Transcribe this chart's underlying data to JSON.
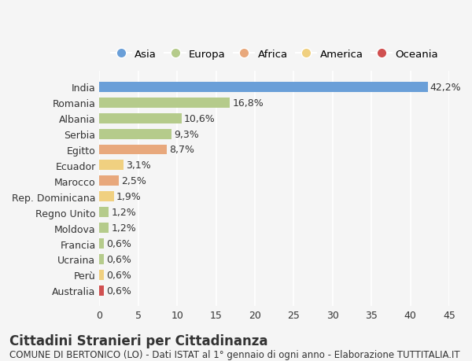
{
  "countries": [
    "India",
    "Romania",
    "Albania",
    "Serbia",
    "Egitto",
    "Ecuador",
    "Marocco",
    "Rep. Dominicana",
    "Regno Unito",
    "Moldova",
    "Francia",
    "Ucraina",
    "Perù",
    "Australia"
  ],
  "values": [
    42.2,
    16.8,
    10.6,
    9.3,
    8.7,
    3.1,
    2.5,
    1.9,
    1.2,
    1.2,
    0.6,
    0.6,
    0.6,
    0.6
  ],
  "labels": [
    "42,2%",
    "16,8%",
    "10,6%",
    "9,3%",
    "8,7%",
    "3,1%",
    "2,5%",
    "1,9%",
    "1,2%",
    "1,2%",
    "0,6%",
    "0,6%",
    "0,6%",
    "0,6%"
  ],
  "continents": [
    "Asia",
    "Europa",
    "Europa",
    "Europa",
    "Africa",
    "America",
    "Africa",
    "America",
    "Europa",
    "Europa",
    "Europa",
    "Europa",
    "America",
    "Oceania"
  ],
  "continent_colors": {
    "Asia": "#6a9fd8",
    "Europa": "#b5cb8b",
    "Africa": "#e8a87c",
    "America": "#f0d080",
    "Oceania": "#d05050"
  },
  "legend_order": [
    "Asia",
    "Europa",
    "Africa",
    "America",
    "Oceania"
  ],
  "xlim": [
    0,
    45
  ],
  "xticks": [
    0,
    5,
    10,
    15,
    20,
    25,
    30,
    35,
    40,
    45
  ],
  "title": "Cittadini Stranieri per Cittadinanza",
  "subtitle": "COMUNE DI BERTONICO (LO) - Dati ISTAT al 1° gennaio di ogni anno - Elaborazione TUTTITALIA.IT",
  "background_color": "#f5f5f5",
  "bar_height": 0.65,
  "grid_color": "#ffffff",
  "text_color": "#333333",
  "title_fontsize": 12,
  "subtitle_fontsize": 8.5,
  "tick_fontsize": 9,
  "label_fontsize": 9
}
